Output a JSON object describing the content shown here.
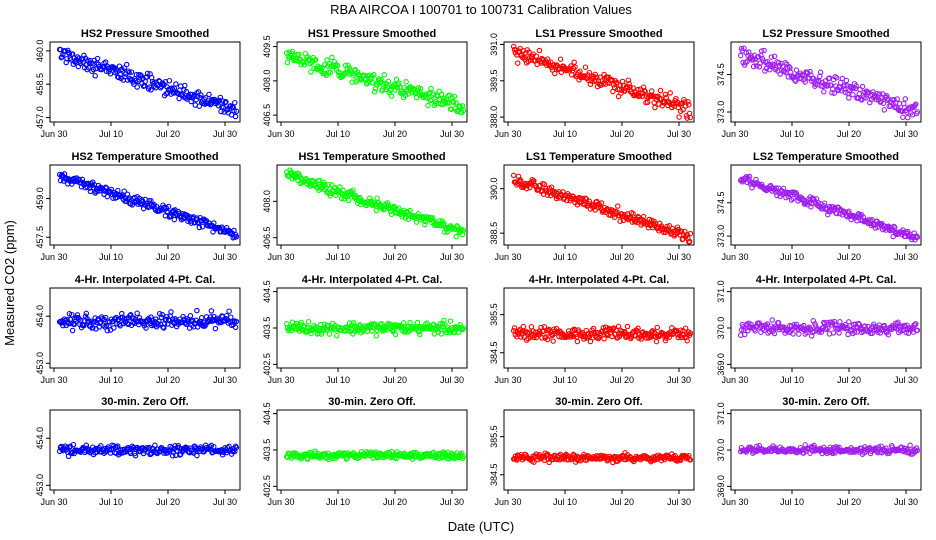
{
  "figure": {
    "title": "RBA   AIRCOA I   100701 to 100731   Calibration Values",
    "xlabel": "Date (UTC)",
    "ylabel": "Measured CO2 (ppm)"
  },
  "colors": {
    "HS2": "#0000ff",
    "HS1": "#00ff00",
    "LS1": "#ff0000",
    "LS2": "#a020f0"
  },
  "chart_data": [
    {
      "type": "scatter",
      "title": "HS2 Pressure Smoothed",
      "series": "HS2",
      "x_ticks": [
        "Jun 30",
        "Jul 10",
        "Jul 20",
        "Jul 30"
      ],
      "y_ticks": [
        "457.0",
        "458.5",
        "460.0"
      ],
      "ylim": [
        456.8,
        460.4
      ],
      "start": 459.9,
      "end": 457.3,
      "spread": 0.55
    },
    {
      "type": "scatter",
      "title": "HS1 Pressure Smoothed",
      "series": "HS1",
      "x_ticks": [
        "Jun 30",
        "Jul 10",
        "Jul 20",
        "Jul 30"
      ],
      "y_ticks": [
        "406.5",
        "408.0",
        "409.5"
      ],
      "ylim": [
        406.2,
        409.7
      ],
      "start": 409.1,
      "end": 406.9,
      "spread": 0.6
    },
    {
      "type": "scatter",
      "title": "LS1 Pressure Smoothed",
      "series": "LS1",
      "x_ticks": [
        "Jun 30",
        "Jul 10",
        "Jul 20",
        "Jul 30"
      ],
      "y_ticks": [
        "388.0",
        "389.5",
        "391.0"
      ],
      "ylim": [
        387.8,
        391.1
      ],
      "start": 390.7,
      "end": 388.3,
      "spread": 0.55
    },
    {
      "type": "scatter",
      "title": "LS2 Pressure Smoothed",
      "series": "LS2",
      "x_ticks": [
        "Jun 30",
        "Jul 10",
        "Jul 20",
        "Jul 30"
      ],
      "y_ticks": [
        "373.0",
        "374.5"
      ],
      "ylim": [
        372.6,
        375.8
      ],
      "start": 375.3,
      "end": 373.0,
      "spread": 0.55
    },
    {
      "type": "scatter",
      "title": "HS2 Temperature Smoothed",
      "series": "HS2",
      "x_ticks": [
        "Jun 30",
        "Jul 10",
        "Jul 20",
        "Jul 30"
      ],
      "y_ticks": [
        "457.5",
        "459.0"
      ],
      "ylim": [
        457.2,
        460.3
      ],
      "start": 459.9,
      "end": 457.6,
      "spread": 0.3
    },
    {
      "type": "scatter",
      "title": "HS1 Temperature Smoothed",
      "series": "HS1",
      "x_ticks": [
        "Jun 30",
        "Jul 10",
        "Jul 20",
        "Jul 30"
      ],
      "y_ticks": [
        "406.5",
        "408.0"
      ],
      "ylim": [
        406.2,
        409.5
      ],
      "start": 409.1,
      "end": 406.7,
      "spread": 0.35
    },
    {
      "type": "scatter",
      "title": "LS1 Temperature Smoothed",
      "series": "LS1",
      "x_ticks": [
        "Jun 30",
        "Jul 10",
        "Jul 20",
        "Jul 30"
      ],
      "y_ticks": [
        "388.5",
        "390.0"
      ],
      "ylim": [
        388.1,
        390.8
      ],
      "start": 390.3,
      "end": 388.4,
      "spread": 0.3
    },
    {
      "type": "scatter",
      "title": "LS2 Temperature Smoothed",
      "series": "LS2",
      "x_ticks": [
        "Jun 30",
        "Jul 10",
        "Jul 20",
        "Jul 30"
      ],
      "y_ticks": [
        "373.0",
        "374.5"
      ],
      "ylim": [
        372.6,
        376.2
      ],
      "start": 375.6,
      "end": 372.9,
      "spread": 0.35
    },
    {
      "type": "scatter",
      "title": "4-Hr. Interpolated 4-Pt. Cal.",
      "series": "HS2",
      "x_ticks": [
        "Jun 30",
        "Jul 10",
        "Jul 20",
        "Jul 30"
      ],
      "y_ticks": [
        "453.0",
        "454.0"
      ],
      "ylim": [
        452.9,
        454.6
      ],
      "start": 453.9,
      "end": 453.9,
      "spread": 0.25
    },
    {
      "type": "scatter",
      "title": "4-Hr. Interpolated 4-Pt. Cal.",
      "series": "HS1",
      "x_ticks": [
        "Jun 30",
        "Jul 10",
        "Jul 20",
        "Jul 30"
      ],
      "y_ticks": [
        "402.5",
        "403.5",
        "404.5"
      ],
      "ylim": [
        402.4,
        404.6
      ],
      "start": 403.5,
      "end": 403.5,
      "spread": 0.25
    },
    {
      "type": "scatter",
      "title": "4-Hr. Interpolated 4-Pt. Cal.",
      "series": "LS1",
      "x_ticks": [
        "Jun 30",
        "Jul 10",
        "Jul 20",
        "Jul 30"
      ],
      "y_ticks": [
        "384.5",
        "385.5"
      ],
      "ylim": [
        384.1,
        386.2
      ],
      "start": 385.0,
      "end": 385.0,
      "spread": 0.25
    },
    {
      "type": "scatter",
      "title": "4-Hr. Interpolated 4-Pt. Cal.",
      "series": "LS2",
      "x_ticks": [
        "Jun 30",
        "Jul 10",
        "Jul 20",
        "Jul 30"
      ],
      "y_ticks": [
        "369.0",
        "370.0",
        "371.0"
      ],
      "ylim": [
        368.9,
        371.1
      ],
      "start": 370.0,
      "end": 370.0,
      "spread": 0.25
    },
    {
      "type": "scatter",
      "title": "30-min. Zero Off.",
      "series": "HS2",
      "x_ticks": [
        "Jun 30",
        "Jul 10",
        "Jul 20",
        "Jul 30"
      ],
      "y_ticks": [
        "453.0",
        "454.0"
      ],
      "ylim": [
        452.9,
        454.6
      ],
      "start": 453.75,
      "end": 453.75,
      "spread": 0.15
    },
    {
      "type": "scatter",
      "title": "30-min. Zero Off.",
      "series": "HS1",
      "x_ticks": [
        "Jun 30",
        "Jul 10",
        "Jul 20",
        "Jul 30"
      ],
      "y_ticks": [
        "402.5",
        "403.5",
        "404.5"
      ],
      "ylim": [
        402.4,
        404.6
      ],
      "start": 403.35,
      "end": 403.35,
      "spread": 0.15
    },
    {
      "type": "scatter",
      "title": "30-min. Zero Off.",
      "series": "LS1",
      "x_ticks": [
        "Jun 30",
        "Jul 10",
        "Jul 20",
        "Jul 30"
      ],
      "y_ticks": [
        "384.5",
        "385.5"
      ],
      "ylim": [
        384.1,
        386.2
      ],
      "start": 384.95,
      "end": 384.95,
      "spread": 0.15
    },
    {
      "type": "scatter",
      "title": "30-min. Zero Off.",
      "series": "LS2",
      "x_ticks": [
        "Jun 30",
        "Jul 10",
        "Jul 20",
        "Jul 30"
      ],
      "y_ticks": [
        "369.0",
        "370.0",
        "371.0"
      ],
      "ylim": [
        368.9,
        371.1
      ],
      "start": 370.0,
      "end": 370.0,
      "spread": 0.15
    }
  ]
}
